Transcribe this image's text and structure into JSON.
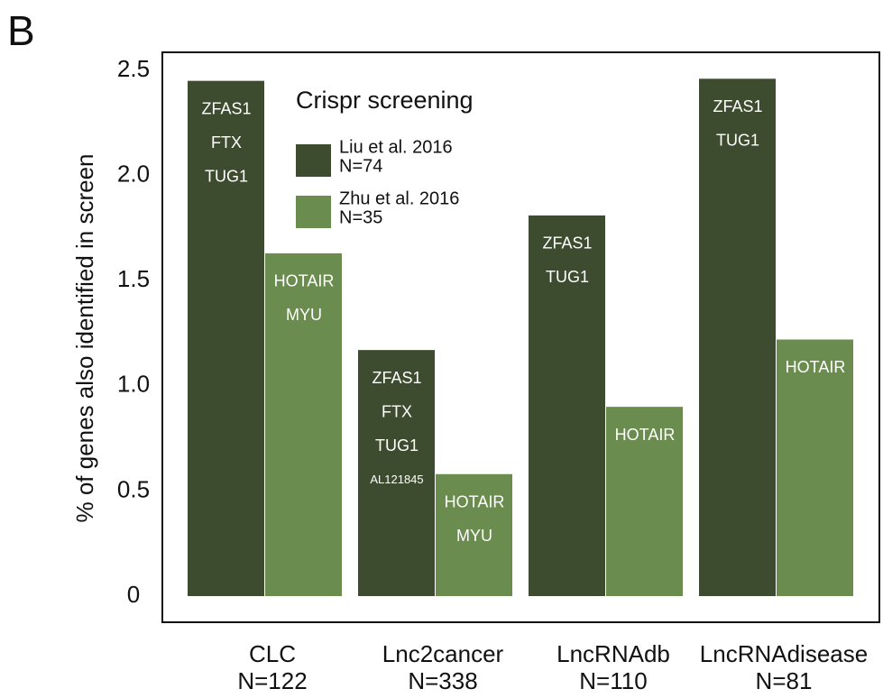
{
  "chart_data": {
    "type": "bar",
    "panel_label": "B",
    "y_label": "% of genes also identified in screen",
    "legend_title": "Crispr screening",
    "categories": [
      "CLC",
      "Lnc2cancer",
      "LncRNAdb",
      "LncRNAdisease"
    ],
    "category_sublabels": [
      "N=122",
      "N=338",
      "N=110",
      "N=81"
    ],
    "series": [
      {
        "name": "Liu et al. 2016",
        "sample_size": "N=74",
        "color": "#3d4b2e",
        "values": [
          2.45,
          1.17,
          1.81,
          2.46
        ],
        "bar_labels": [
          [
            "ZFAS1",
            "FTX",
            "TUG1"
          ],
          [
            "ZFAS1",
            "FTX",
            "TUG1",
            "AL121845"
          ],
          [
            "ZFAS1",
            "TUG1"
          ],
          [
            "ZFAS1",
            "TUG1"
          ]
        ]
      },
      {
        "name": "Zhu et al. 2016",
        "sample_size": "N=35",
        "color": "#6b8c4f",
        "values": [
          1.63,
          0.58,
          0.9,
          1.22
        ],
        "bar_labels": [
          [
            "HOTAIR",
            "MYU"
          ],
          [
            "HOTAIR",
            "MYU"
          ],
          [
            "HOTAIR"
          ],
          [
            "HOTAIR"
          ]
        ]
      }
    ],
    "ylim": [
      0,
      2.5
    ],
    "yticks": [
      0,
      0.5,
      {
        "value": 1,
        "label": "1.0"
      },
      {
        "value": 1.5,
        "label": "1.5"
      },
      {
        "value": 2,
        "label": "2.0"
      },
      2.5
    ]
  }
}
